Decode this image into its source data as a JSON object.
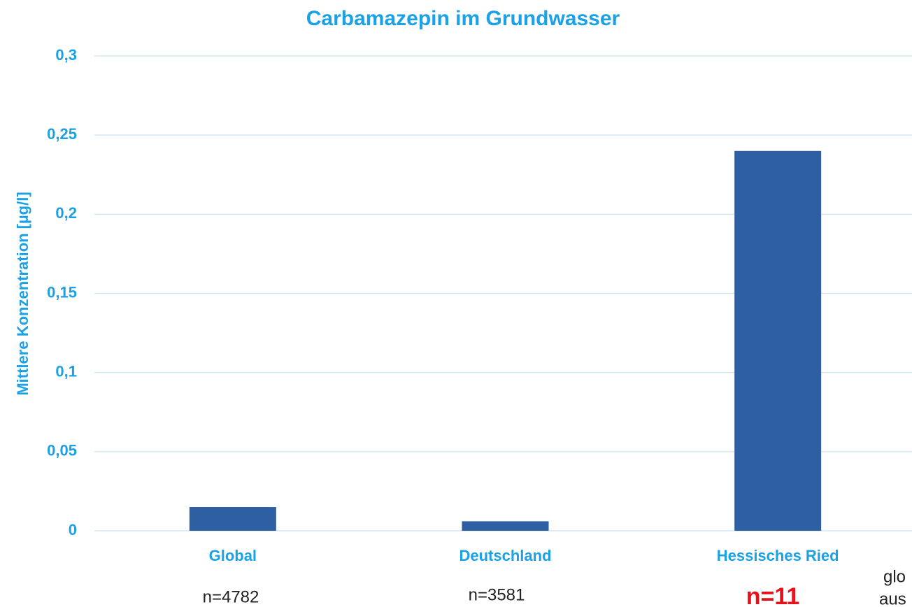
{
  "chart_data": {
    "type": "bar",
    "title": "Carbamazepin im Grundwasser",
    "y_label": "Mittlere Konzentration [µg/l]",
    "categories": [
      "Global",
      "Deutschland",
      "Hessisches Ried"
    ],
    "values": [
      0.015,
      0.006,
      0.24
    ],
    "color": "#2e5fa3",
    "ylim": [
      0,
      0.3
    ],
    "yticks": [
      0,
      {
        "value": 0.05,
        "label": "0,05"
      },
      {
        "value": 0.1,
        "label": "0,1"
      },
      {
        "value": 0.15,
        "label": "0,15"
      },
      {
        "value": 0.2,
        "label": "0,2"
      },
      {
        "value": 0.25,
        "label": "0,25"
      },
      {
        "value": 0.3,
        "label": "0,3"
      }
    ],
    "grid": true,
    "annotations": [
      "n=4782",
      "n=3581",
      "n=11",
      "glo",
      "aus"
    ]
  }
}
